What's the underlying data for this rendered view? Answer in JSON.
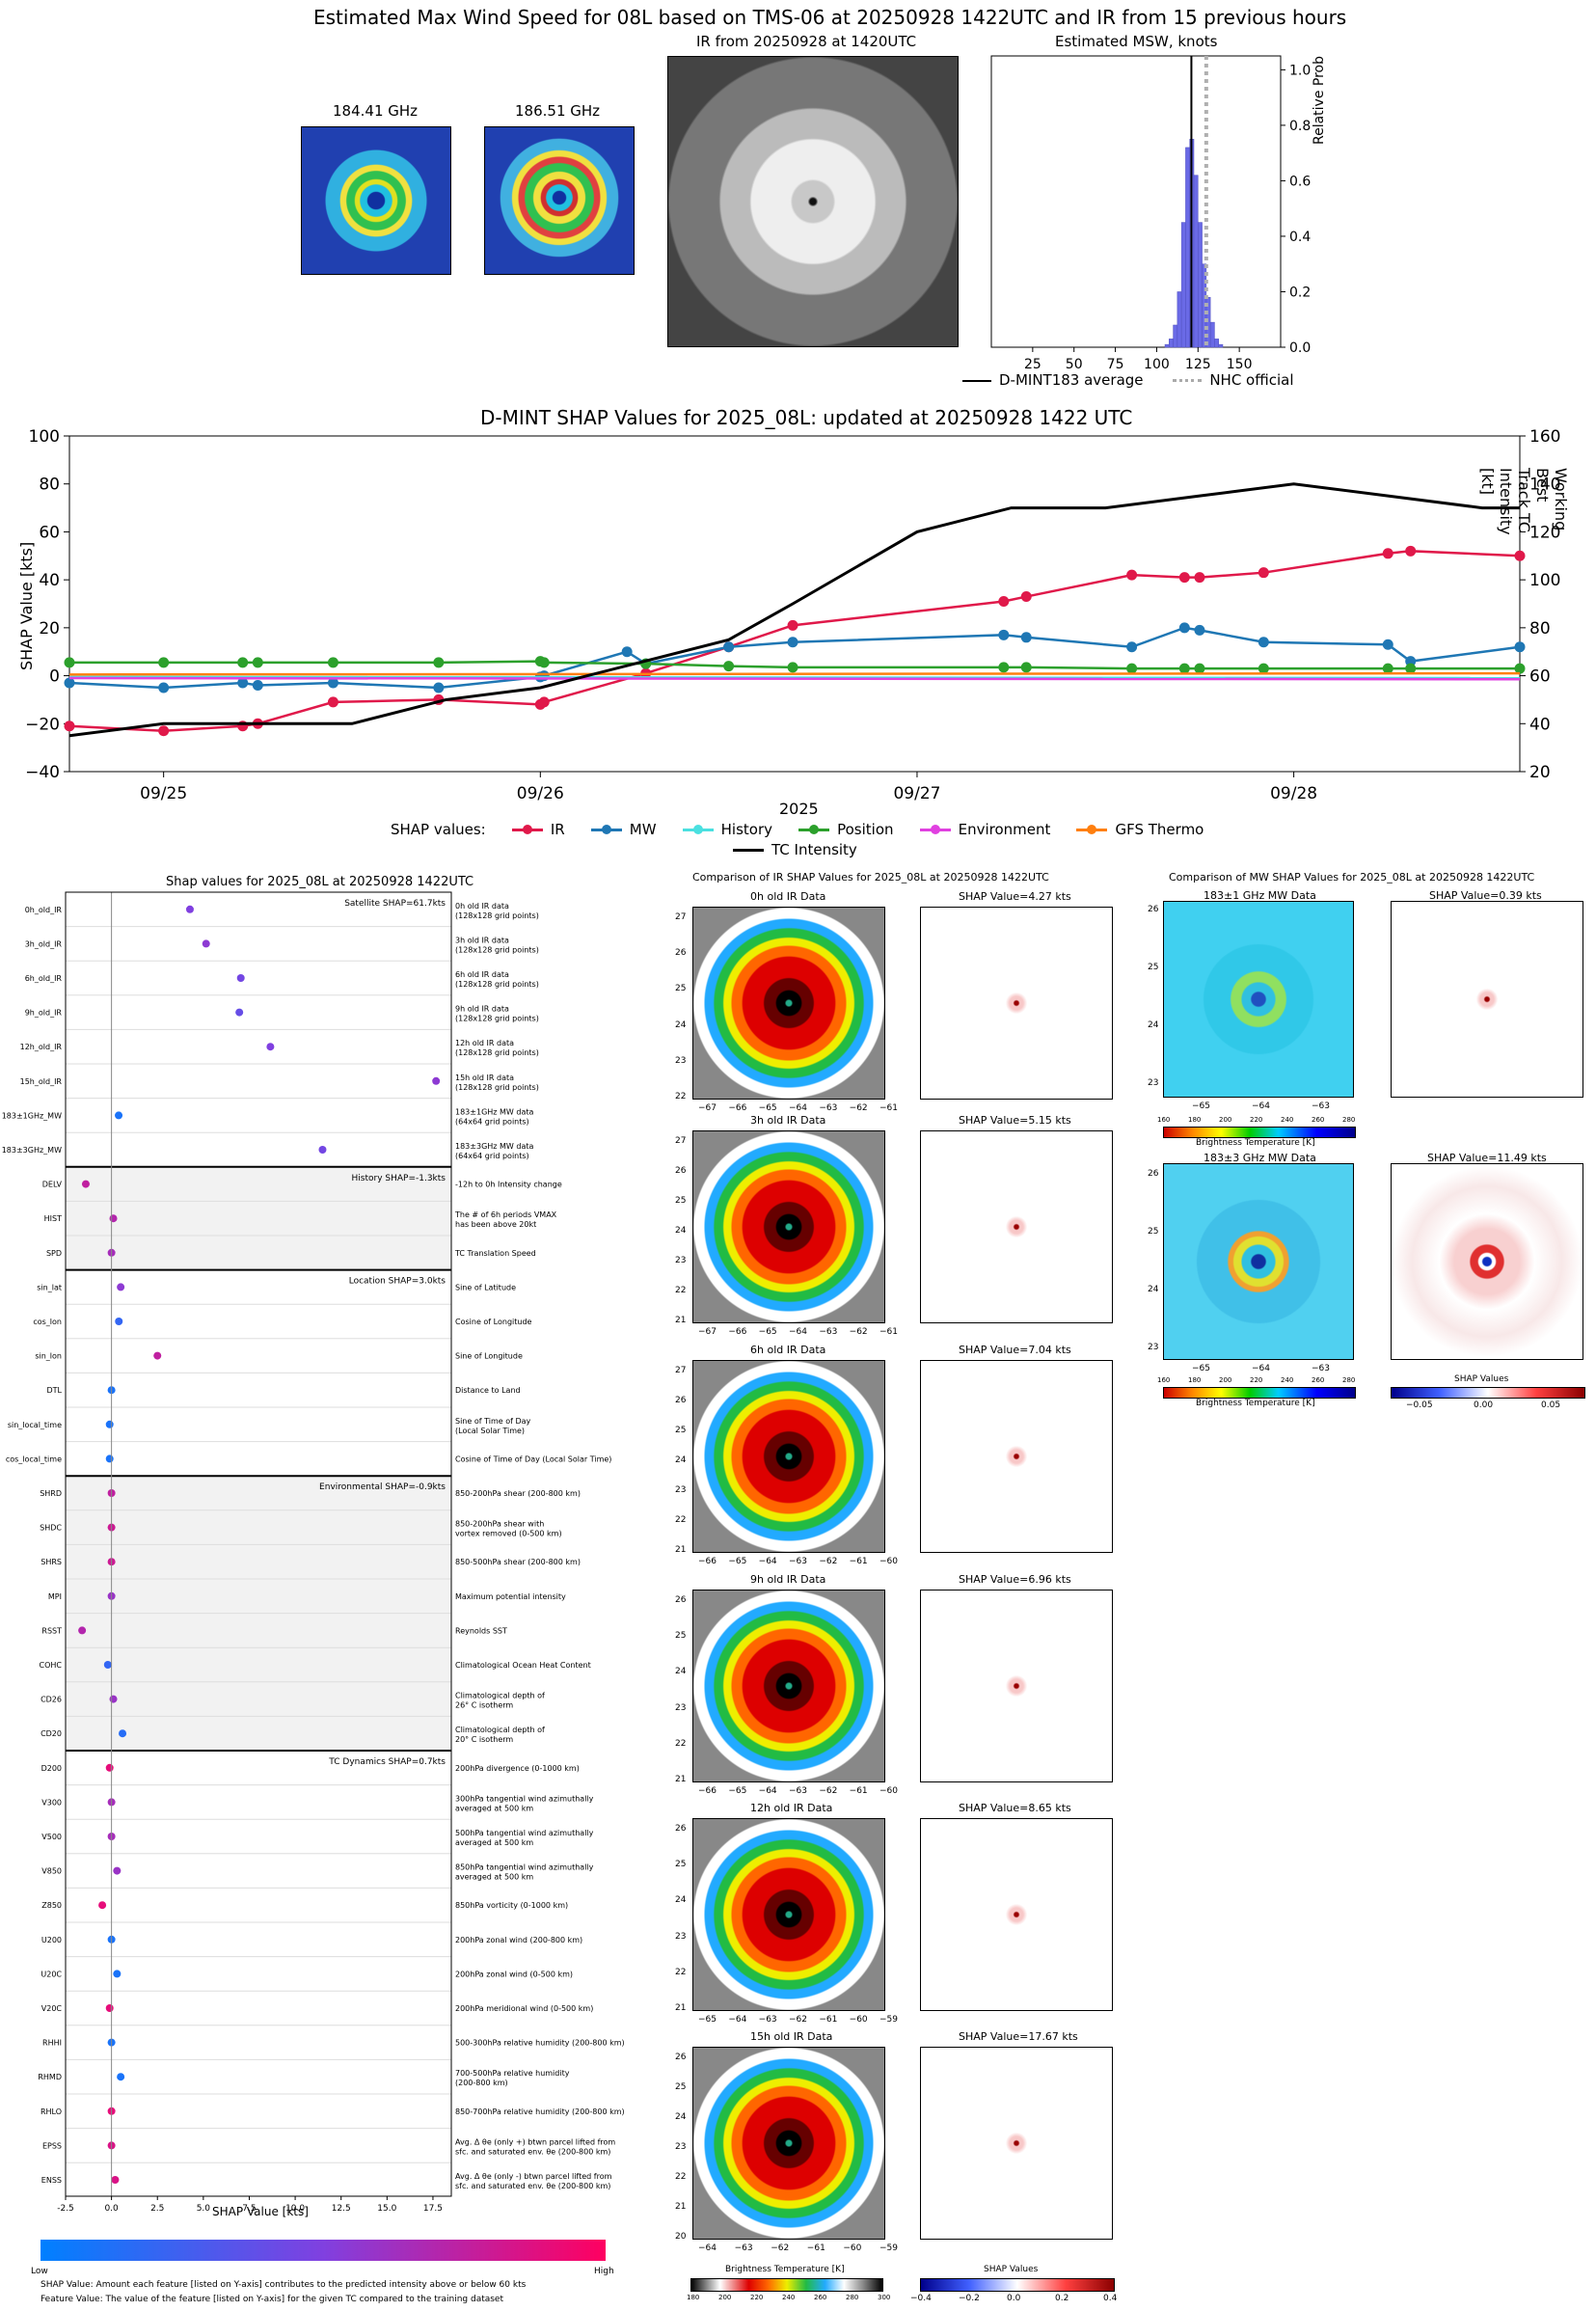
{
  "header": {
    "main_title": "Estimated Max Wind Speed for 08L based on TMS-06 at 20250928 1422UTC and IR from 15 previous hours",
    "mw1_title": "184.41 GHz",
    "mw2_title": "186.51 GHz",
    "ir_title": "IR from 20250928 at 1420UTC",
    "hist_title": "Estimated MSW, knots",
    "hist_ylabel": "Relative Prob",
    "legend_dmint": "D-MINT183 average",
    "legend_nhc": "NHC official",
    "hist_xticks": [
      "25",
      "50",
      "75",
      "100",
      "125",
      "150"
    ],
    "hist_yticks": [
      "0.0",
      "0.2",
      "0.4",
      "0.6",
      "0.8",
      "1.0"
    ]
  },
  "chart_data": [
    {
      "type": "bar",
      "title": "Estimated MSW, knots",
      "xlabel": "",
      "ylabel": "Relative Prob",
      "xlim": [
        0,
        175
      ],
      "ylim": [
        0,
        1.05
      ],
      "bin_width": 2.5,
      "bins": [
        105,
        107.5,
        110,
        112.5,
        115,
        117.5,
        120,
        122.5,
        125,
        127.5,
        130,
        132.5,
        135,
        137.5
      ],
      "values": [
        0.01,
        0.03,
        0.08,
        0.2,
        0.45,
        0.72,
        0.75,
        0.62,
        0.45,
        0.3,
        0.18,
        0.09,
        0.03,
        0.01
      ],
      "dmint_average": 121,
      "nhc_official": 130
    },
    {
      "type": "line",
      "title": "D-MINT SHAP Values for 2025_08L: updated at 20250928 1422 UTC",
      "xlabel": "2025",
      "ylabel": "SHAP Value [kts]",
      "y2label": "Working Best Track TC Intensity [kt]",
      "ylim": [
        -40,
        100
      ],
      "y2lim": [
        20,
        160
      ],
      "yticks": [
        "100",
        "80",
        "60",
        "40",
        "20",
        "0",
        "−20",
        "−40"
      ],
      "y2ticks": [
        "160",
        "140",
        "120",
        "100",
        "80",
        "60",
        "40",
        "20"
      ],
      "xticks": [
        "09/25",
        "09/26",
        "09/27",
        "09/28"
      ],
      "legend_label": "SHAP values:",
      "series": [
        {
          "name": "IR",
          "color": "#e0194a",
          "x": [
            24.75,
            25.0,
            25.21,
            25.25,
            25.45,
            25.73,
            26.0,
            26.01,
            26.28,
            26.5,
            26.67,
            27.23,
            27.29,
            27.57,
            27.71,
            27.75,
            27.92,
            28.25,
            28.31,
            28.6
          ],
          "y": [
            -21,
            -23,
            -21,
            -20,
            -11,
            -10,
            -12,
            -11,
            1,
            12,
            21,
            31,
            33,
            42,
            41,
            41,
            43,
            51,
            52,
            50
          ]
        },
        {
          "name": "MW",
          "color": "#1f77b4",
          "x": [
            24.75,
            25.0,
            25.21,
            25.25,
            25.45,
            25.73,
            26.0,
            26.01,
            26.23,
            26.28,
            26.5,
            26.67,
            27.23,
            27.29,
            27.57,
            27.71,
            27.75,
            27.92,
            28.25,
            28.31,
            28.6
          ],
          "y": [
            -3,
            -5,
            -3,
            -4,
            -3,
            -5,
            -0.5,
            0,
            10,
            5,
            12,
            14,
            17,
            16,
            12,
            20,
            19,
            14,
            13,
            6,
            12
          ]
        },
        {
          "name": "History",
          "color": "#4ae0e0",
          "x": [
            24.75,
            28.6
          ],
          "y": [
            -0.5,
            -1.0
          ]
        },
        {
          "name": "Position",
          "color": "#2ca02c",
          "x": [
            24.75,
            25.0,
            25.21,
            25.25,
            25.45,
            25.73,
            26.0,
            26.01,
            26.28,
            26.5,
            26.67,
            27.23,
            27.29,
            27.57,
            27.71,
            27.75,
            27.92,
            28.25,
            28.31,
            28.6
          ],
          "y": [
            5.5,
            5.5,
            5.5,
            5.5,
            5.5,
            5.5,
            6,
            5.5,
            5,
            4,
            3.5,
            3.5,
            3.5,
            3,
            3,
            3,
            3,
            3,
            3,
            3
          ]
        },
        {
          "name": "Environment",
          "color": "#e040e0",
          "x": [
            24.75,
            28.6
          ],
          "y": [
            -1,
            -1.5
          ]
        },
        {
          "name": "GFS Thermo",
          "color": "#ff7f0e",
          "x": [
            24.75,
            28.6
          ],
          "y": [
            0.5,
            1
          ]
        },
        {
          "name": "TC Intensity",
          "color": "#000000",
          "axis": "right",
          "x": [
            24.75,
            25.0,
            25.5,
            25.75,
            26.0,
            26.25,
            26.5,
            26.67,
            27.0,
            27.25,
            27.5,
            27.75,
            28.0,
            28.25,
            28.5,
            28.6
          ],
          "y": [
            35,
            40,
            40,
            50,
            55,
            65,
            75,
            90,
            120,
            130,
            130,
            135,
            140,
            135,
            130,
            130
          ]
        }
      ]
    },
    {
      "type": "scatter",
      "title": "Shap values for 2025_08L at 20250928 1422UTC",
      "xlabel": "SHAP Value [kts]",
      "xlim": [
        -2.5,
        18.5
      ],
      "xticks": [
        "-2.5",
        "0.0",
        "2.5",
        "5.0",
        "7.5",
        "10.0",
        "12.5",
        "15.0",
        "17.5"
      ],
      "groups": [
        {
          "label": "Satellite SHAP=61.7kts",
          "features": [
            {
              "name": "0h_old_IR",
              "desc1": "0h old IR data",
              "desc2": "(128x128 grid points)",
              "value": 4.27,
              "fv": 0.5
            },
            {
              "name": "3h_old_IR",
              "desc1": "3h old IR data",
              "desc2": "(128x128 grid points)",
              "value": 5.15,
              "fv": 0.55
            },
            {
              "name": "6h_old_IR",
              "desc1": "6h old IR data",
              "desc2": "(128x128 grid points)",
              "value": 7.04,
              "fv": 0.45
            },
            {
              "name": "9h_old_IR",
              "desc1": "9h old IR data",
              "desc2": "(128x128 grid points)",
              "value": 6.96,
              "fv": 0.4
            },
            {
              "name": "12h_old_IR",
              "desc1": "12h old IR data",
              "desc2": "(128x128 grid points)",
              "value": 8.65,
              "fv": 0.5
            },
            {
              "name": "15h_old_IR",
              "desc1": "15h old IR data",
              "desc2": "(128x128 grid points)",
              "value": 17.67,
              "fv": 0.55
            },
            {
              "name": "183±1GHz_MW",
              "desc1": "183±1GHz MW data",
              "desc2": "(64x64 grid points)",
              "value": 0.39,
              "fv": 0.1
            },
            {
              "name": "183±3GHz_MW",
              "desc1": "183±3GHz MW data",
              "desc2": "(64x64 grid points)",
              "value": 11.49,
              "fv": 0.45
            }
          ]
        },
        {
          "label": "History SHAP=-1.3kts",
          "features": [
            {
              "name": "DELV",
              "desc1": "-12h to 0h Intensity change",
              "desc2": "",
              "value": -1.4,
              "fv": 0.75
            },
            {
              "name": "HIST",
              "desc1": "The # of 6h periods VMAX",
              "desc2": "has been above 20kt",
              "value": 0.1,
              "fv": 0.7
            },
            {
              "name": "SPD",
              "desc1": "TC Translation Speed",
              "desc2": "",
              "value": 0.0,
              "fv": 0.65
            }
          ]
        },
        {
          "label": "Location SHAP=3.0kts",
          "features": [
            {
              "name": "sin_lat",
              "desc1": "Sine of Latitude",
              "desc2": "",
              "value": 0.5,
              "fv": 0.55
            },
            {
              "name": "cos_lon",
              "desc1": "Cosine of Longitude",
              "desc2": "",
              "value": 0.4,
              "fv": 0.2
            },
            {
              "name": "sin_lon",
              "desc1": "Sine of Longitude",
              "desc2": "",
              "value": 2.5,
              "fv": 0.75
            },
            {
              "name": "DTL",
              "desc1": "Distance to Land",
              "desc2": "",
              "value": 0.0,
              "fv": 0.1
            },
            {
              "name": "sin_local_time",
              "desc1": "Sine of Time of Day",
              "desc2": "(Local Solar Time)",
              "value": -0.1,
              "fv": 0.1
            },
            {
              "name": "cos_local_time",
              "desc1": "Cosine of Time of Day (Local Solar Time)",
              "desc2": "",
              "value": -0.1,
              "fv": 0.1
            }
          ]
        },
        {
          "label": "Environmental SHAP=-0.9kts",
          "features": [
            {
              "name": "SHRD",
              "desc1": "850-200hPa shear (200-800 km)",
              "desc2": "",
              "value": 0.0,
              "fv": 0.75
            },
            {
              "name": "SHDC",
              "desc1": "850-200hPa shear with",
              "desc2": "vortex removed (0-500 km)",
              "value": 0.0,
              "fv": 0.8
            },
            {
              "name": "SHRS",
              "desc1": "850-500hPa shear (200-800 km)",
              "desc2": "",
              "value": 0.0,
              "fv": 0.8
            },
            {
              "name": "MPI",
              "desc1": "Maximum potential intensity",
              "desc2": "",
              "value": 0.0,
              "fv": 0.6
            },
            {
              "name": "RSST",
              "desc1": "Reynolds SST",
              "desc2": "",
              "value": -1.6,
              "fv": 0.7
            },
            {
              "name": "COHC",
              "desc1": "Climatological Ocean Heat Content",
              "desc2": "",
              "value": -0.2,
              "fv": 0.2
            },
            {
              "name": "CD26",
              "desc1": "Climatological depth of",
              "desc2": "26° C isotherm",
              "value": 0.1,
              "fv": 0.6
            },
            {
              "name": "CD20",
              "desc1": "Climatological depth of",
              "desc2": "20° C isotherm",
              "value": 0.6,
              "fv": 0.15
            }
          ]
        },
        {
          "label": "TC Dynamics SHAP=0.7kts",
          "features": [
            {
              "name": "D200",
              "desc1": "200hPa divergence (0-1000 km)",
              "desc2": "",
              "value": -0.1,
              "fv": 0.9
            },
            {
              "name": "V300",
              "desc1": "300hPa tangential wind azimuthally",
              "desc2": "averaged at 500 km",
              "value": 0.0,
              "fv": 0.65
            },
            {
              "name": "V500",
              "desc1": "500hPa tangential wind azimuthally",
              "desc2": "averaged at 500 km",
              "value": 0.0,
              "fv": 0.65
            },
            {
              "name": "V850",
              "desc1": "850hPa tangential wind azimuthally",
              "desc2": "averaged at 500 km",
              "value": 0.3,
              "fv": 0.6
            },
            {
              "name": "Z850",
              "desc1": "850hPa vorticity (0-1000 km)",
              "desc2": "",
              "value": -0.5,
              "fv": 0.9
            },
            {
              "name": "U200",
              "desc1": "200hPa zonal wind (200-800 km)",
              "desc2": "",
              "value": 0.0,
              "fv": 0.1
            },
            {
              "name": "U20C",
              "desc1": "200hPa zonal wind (0-500 km)",
              "desc2": "",
              "value": 0.3,
              "fv": 0.1
            },
            {
              "name": "V20C",
              "desc1": "200hPa meridional wind (0-500 km)",
              "desc2": "",
              "value": -0.1,
              "fv": 0.9
            },
            {
              "name": "RHHI",
              "desc1": "500-300hPa relative humidity (200-800 km)",
              "desc2": "",
              "value": 0.0,
              "fv": 0.1
            },
            {
              "name": "RHMD",
              "desc1": "700-500hPa relative humidity",
              "desc2": "(200-800 km)",
              "value": 0.5,
              "fv": 0.1
            },
            {
              "name": "RHLO",
              "desc1": "850-700hPa relative humidity (200-800 km)",
              "desc2": "",
              "value": 0.0,
              "fv": 0.9
            },
            {
              "name": "EPSS",
              "desc1": "Avg. Δ θe (only +) btwn parcel lifted from",
              "desc2": "sfc. and saturated env. θe (200-800 km)",
              "value": 0.0,
              "fv": 0.85
            },
            {
              "name": "ENSS",
              "desc1": "Avg. Δ θe (only -) btwn parcel lifted from",
              "desc2": "sfc. and saturated env. θe (200-800 km)",
              "value": 0.2,
              "fv": 0.85
            }
          ]
        }
      ]
    }
  ],
  "legend": {
    "ir": "IR",
    "mw": "MW",
    "history": "History",
    "position": "Position",
    "environment": "Environment",
    "gfs": "GFS Thermo",
    "tc": "TC Intensity"
  },
  "beeswarm_footer": {
    "low": "Low",
    "high": "High",
    "note1": "SHAP Value: Amount each feature [listed on Y-axis] contributes to the predicted intensity above or below 60 kts",
    "note2": "Feature Value: The value of the feature [listed on Y-axis] for the given TC compared to the training dataset"
  },
  "ir_compare": {
    "title": "Comparison of IR SHAP Values for 2025_08L at 20250928 1422UTC",
    "rows": [
      {
        "data_title": "0h old IR Data",
        "shap_title": "SHAP Value=4.27 kts",
        "xticks": [
          "−67",
          "−66",
          "−65",
          "−64",
          "−63",
          "−62",
          "−61"
        ],
        "yticks": [
          "27",
          "26",
          "25",
          "24",
          "23",
          "22"
        ]
      },
      {
        "data_title": "3h old IR Data",
        "shap_title": "SHAP Value=5.15 kts",
        "xticks": [
          "−67",
          "−66",
          "−65",
          "−64",
          "−63",
          "−62",
          "−61"
        ],
        "yticks": [
          "27",
          "26",
          "25",
          "24",
          "23",
          "22",
          "21"
        ]
      },
      {
        "data_title": "6h old IR Data",
        "shap_title": "SHAP Value=7.04 kts",
        "xticks": [
          "−66",
          "−65",
          "−64",
          "−63",
          "−62",
          "−61",
          "−60"
        ],
        "yticks": [
          "27",
          "26",
          "25",
          "24",
          "23",
          "22",
          "21"
        ]
      },
      {
        "data_title": "9h old IR Data",
        "shap_title": "SHAP Value=6.96 kts",
        "xticks": [
          "−66",
          "−65",
          "−64",
          "−63",
          "−62",
          "−61",
          "−60"
        ],
        "yticks": [
          "26",
          "25",
          "24",
          "23",
          "22",
          "21"
        ]
      },
      {
        "data_title": "12h old IR Data",
        "shap_title": "SHAP Value=8.65 kts",
        "xticks": [
          "−65",
          "−64",
          "−63",
          "−62",
          "−61",
          "−60",
          "−59"
        ],
        "yticks": [
          "26",
          "25",
          "24",
          "23",
          "22",
          "21"
        ]
      },
      {
        "data_title": "15h old IR Data",
        "shap_title": "SHAP Value=17.67 kts",
        "xticks": [
          "−64",
          "−63",
          "−62",
          "−61",
          "−60",
          "−59"
        ],
        "yticks": [
          "26",
          "25",
          "24",
          "23",
          "22",
          "21",
          "20"
        ]
      }
    ],
    "bt_label": "Brightness Temperature [K]",
    "bt_ticks": [
      "180",
      "200",
      "220",
      "240",
      "260",
      "280",
      "300"
    ],
    "shap_label": "SHAP Values",
    "shap_ticks": [
      "−0.4",
      "−0.2",
      "0.0",
      "0.2",
      "0.4"
    ]
  },
  "mw_compare": {
    "title": "Comparison of MW SHAP Values for 2025_08L at 20250928 1422UTC",
    "row1_data": "183±1 GHz MW Data",
    "row1_shap": "SHAP Value=0.39 kts",
    "row2_data": "183±3 GHz MW Data",
    "row2_shap": "SHAP Value=11.49 kts",
    "xticks": [
      "−65",
      "−64",
      "−63"
    ],
    "yticks1": [
      "26",
      "25",
      "24",
      "23"
    ],
    "yticks2": [
      "26",
      "25",
      "24",
      "23"
    ],
    "bt_label": "Brightness Temperature [K]",
    "bt_ticks": [
      "160",
      "180",
      "200",
      "220",
      "240",
      "260",
      "280"
    ],
    "shap_label": "SHAP Values",
    "shap_ticks": [
      "−0.05",
      "0.00",
      "0.05"
    ]
  }
}
